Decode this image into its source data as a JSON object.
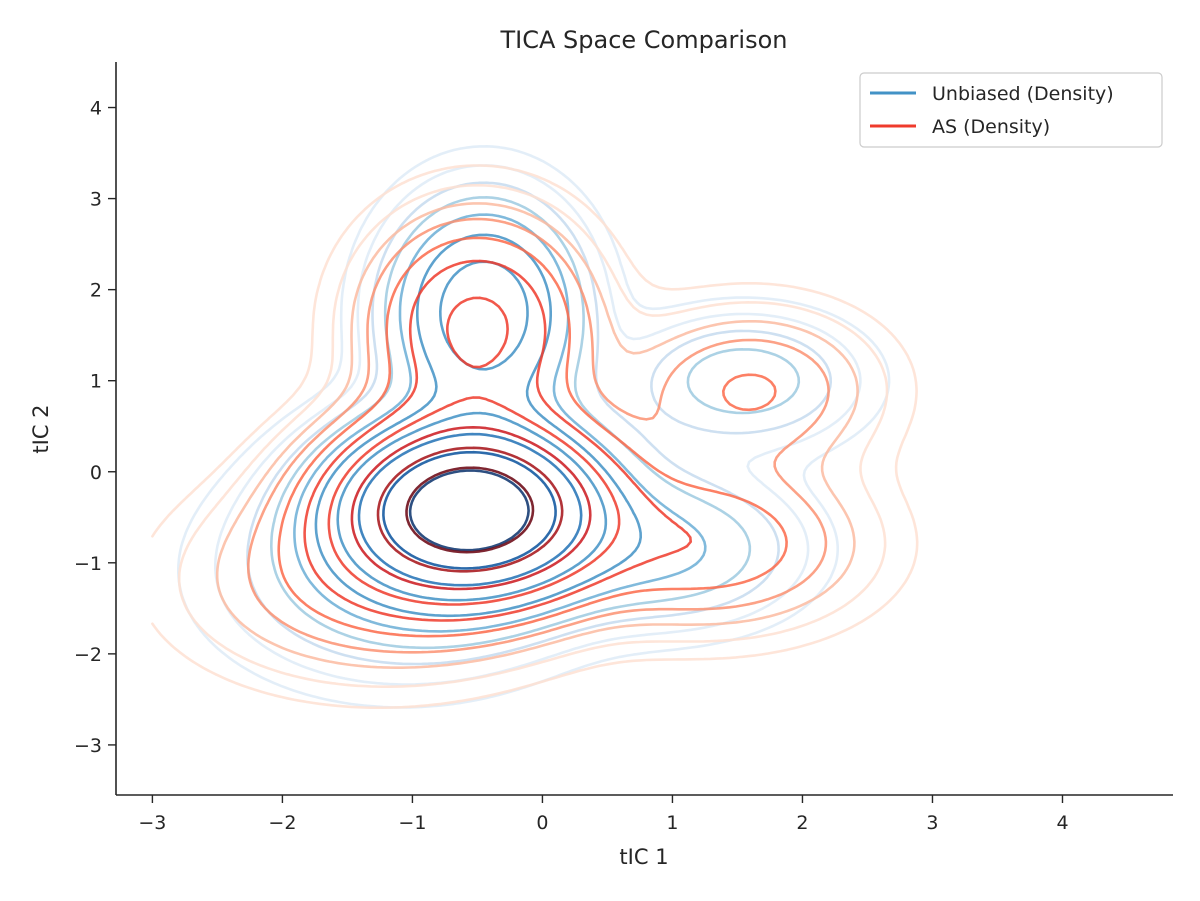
{
  "chart_data": {
    "type": "contour",
    "title": "TICA Space Comparison",
    "xlabel": "tIC 1",
    "ylabel": "tIC 2",
    "xlim": [
      -3.28,
      4.85
    ],
    "ylim": [
      -3.55,
      4.5
    ],
    "xticks": [
      "−3",
      "−2",
      "−1",
      "0",
      "1",
      "2",
      "3",
      "4"
    ],
    "xtick_values": [
      -3,
      -2,
      -1,
      0,
      1,
      2,
      3,
      4
    ],
    "yticks": [
      "−3",
      "−2",
      "−1",
      "0",
      "1",
      "2",
      "3",
      "4"
    ],
    "ytick_values": [
      -3,
      -2,
      -1,
      0,
      1,
      2,
      3,
      4
    ],
    "grid": false,
    "legend_position": "upper right",
    "series": [
      {
        "name": "Unbiased (Density)",
        "legend_color": "#4292c6",
        "palette": [
          "#deebf7",
          "#c6dbef",
          "#9ecae1",
          "#6baed6",
          "#4292c6",
          "#2171b5",
          "#08519c",
          "#08306b"
        ],
        "peak_centers": [
          [
            -0.55,
            -0.4
          ],
          [
            -0.45,
            1.75
          ],
          [
            1.55,
            1.0
          ],
          [
            1.0,
            -0.85
          ]
        ],
        "levels": 10
      },
      {
        "name": "AS (Density)",
        "legend_color": "#ef3b2c",
        "palette": [
          "#fee0d2",
          "#fcbba1",
          "#fc9272",
          "#fb6a4a",
          "#ef3b2c",
          "#cb181d",
          "#a50f15",
          "#67000d"
        ],
        "peak_centers": [
          [
            -0.55,
            -0.4
          ],
          [
            -0.5,
            1.6
          ],
          [
            1.6,
            0.9
          ],
          [
            1.3,
            -0.8
          ]
        ],
        "levels": 10
      }
    ]
  }
}
